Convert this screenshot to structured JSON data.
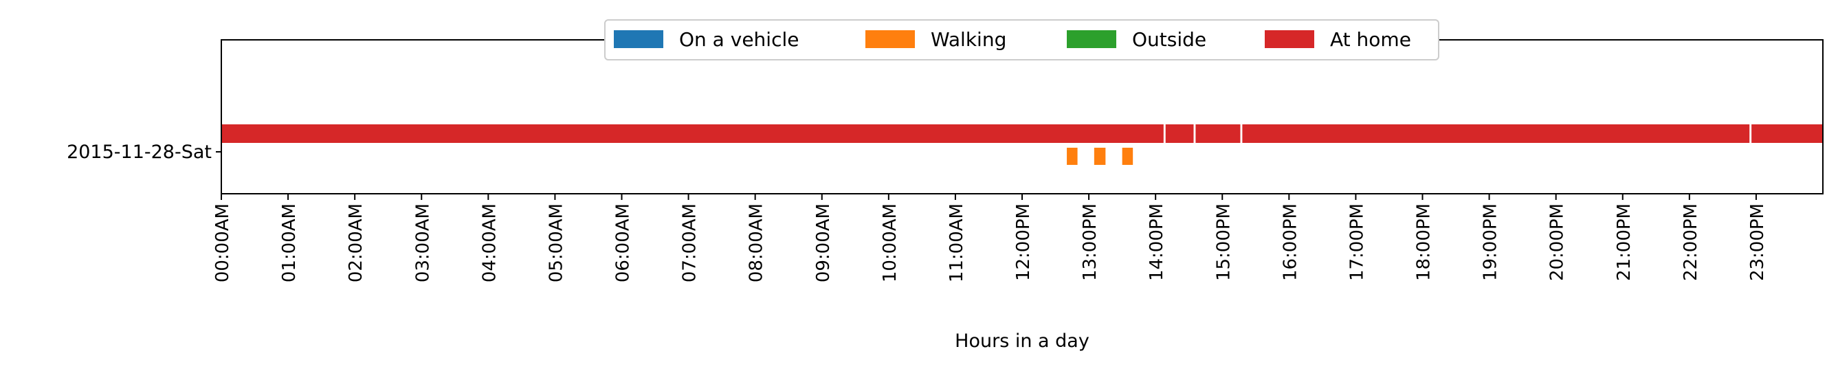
{
  "chart_data": {
    "type": "timeline",
    "xlabel": "Hours in a day",
    "xlim": [
      0,
      24
    ],
    "x_ticks": [
      {
        "value": 0,
        "label": "00:00AM"
      },
      {
        "value": 1,
        "label": "01:00AM"
      },
      {
        "value": 2,
        "label": "02:00AM"
      },
      {
        "value": 3,
        "label": "03:00AM"
      },
      {
        "value": 4,
        "label": "04:00AM"
      },
      {
        "value": 5,
        "label": "05:00AM"
      },
      {
        "value": 6,
        "label": "06:00AM"
      },
      {
        "value": 7,
        "label": "07:00AM"
      },
      {
        "value": 8,
        "label": "08:00AM"
      },
      {
        "value": 9,
        "label": "09:00AM"
      },
      {
        "value": 10,
        "label": "10:00AM"
      },
      {
        "value": 11,
        "label": "11:00AM"
      },
      {
        "value": 12,
        "label": "12:00PM"
      },
      {
        "value": 13,
        "label": "13:00PM"
      },
      {
        "value": 14,
        "label": "14:00PM"
      },
      {
        "value": 15,
        "label": "15:00PM"
      },
      {
        "value": 16,
        "label": "16:00PM"
      },
      {
        "value": 17,
        "label": "17:00PM"
      },
      {
        "value": 18,
        "label": "18:00PM"
      },
      {
        "value": 19,
        "label": "19:00PM"
      },
      {
        "value": 20,
        "label": "20:00PM"
      },
      {
        "value": 21,
        "label": "21:00PM"
      },
      {
        "value": 22,
        "label": "22:00PM"
      },
      {
        "value": 23,
        "label": "23:00PM"
      }
    ],
    "categories": [
      "2015-11-28-Sat"
    ],
    "legend": {
      "placement": "top-center",
      "entries": [
        {
          "name": "On a vehicle",
          "color": "#1f77b4"
        },
        {
          "name": "Walking",
          "color": "#ff7f0e"
        },
        {
          "name": "Outside",
          "color": "#2ca02c"
        },
        {
          "name": "At home",
          "color": "#d62728"
        }
      ]
    },
    "series": [
      {
        "name": "On a vehicle",
        "color": "#1f77b4",
        "intervals": []
      },
      {
        "name": "Walking",
        "color": "#ff7f0e",
        "intervals": [
          [
            12.67,
            12.83
          ],
          [
            13.08,
            13.25
          ],
          [
            13.5,
            13.66
          ]
        ]
      },
      {
        "name": "Outside",
        "color": "#2ca02c",
        "intervals": []
      },
      {
        "name": "At home",
        "color": "#d62728",
        "intervals": [
          [
            0,
            14.12
          ],
          [
            14.15,
            14.57
          ],
          [
            14.6,
            15.27
          ],
          [
            15.3,
            22.9
          ],
          [
            22.93,
            24
          ]
        ]
      }
    ]
  }
}
